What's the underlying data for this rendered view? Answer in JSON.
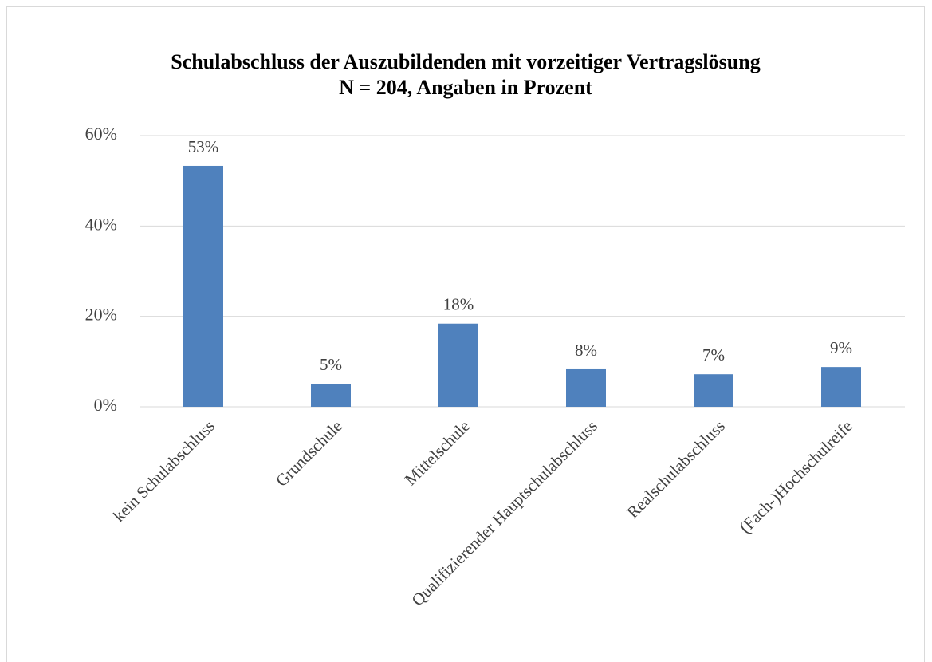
{
  "chart_data": {
    "type": "bar",
    "title": "Schulabschluss der Auszubildenden mit vorzeitiger Vertragslösung",
    "subtitle": "N = 204, Angaben in Prozent",
    "categories": [
      "kein Schulabschluss",
      "Grundschule",
      "Mittelschule",
      "Qualifizierender Hauptschulabschluss",
      "Realschulabschluss",
      "(Fach-)Hochschulreife"
    ],
    "values": [
      53.3,
      5.1,
      18.4,
      8.3,
      7.2,
      8.8
    ],
    "value_labels": [
      "53%",
      "5%",
      "18%",
      "8%",
      "7%",
      "9%"
    ],
    "color": "#4f81bd",
    "ylim": [
      0,
      60
    ],
    "yticks": [
      {
        "value": 0,
        "label": "0%"
      },
      {
        "value": 20,
        "label": "20%"
      },
      {
        "value": 40,
        "label": "40%"
      },
      {
        "value": 60,
        "label": "60%"
      }
    ],
    "grid": true
  }
}
